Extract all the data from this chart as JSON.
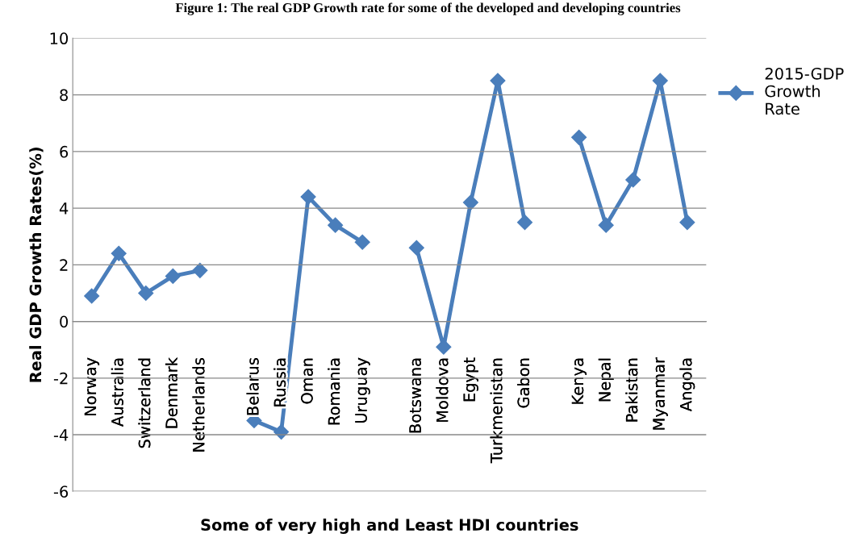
{
  "chart_data": {
    "type": "line",
    "title": "Figure 1: The real GDP Growth rate for some of the developed and developing countries",
    "xlabel": "Some of very high and Least HDI countries",
    "ylabel": "Real GDP Growth Rates(%)",
    "categories": [
      "Norway",
      "Australia",
      "Switzerland",
      "Denmark",
      "Netherlands",
      null,
      "Belarus",
      "Russia",
      "Oman",
      "Romania",
      "Uruguay",
      null,
      "Botswana",
      "Moldova",
      "Egypt",
      "Turkmenistan",
      "Gabon",
      null,
      "Kenya",
      "Nepal",
      "Pakistan",
      "Myanmar",
      "Angola"
    ],
    "series": [
      {
        "name": "2015-GDP Growth Rate",
        "color": "#4a7ebb",
        "values": [
          0.9,
          2.4,
          1.0,
          1.6,
          1.8,
          null,
          -3.5,
          -3.9,
          4.4,
          3.4,
          2.8,
          null,
          2.6,
          -0.9,
          4.2,
          8.5,
          3.5,
          null,
          6.5,
          3.4,
          5.0,
          8.5,
          3.5
        ]
      }
    ],
    "ylim": [
      -6,
      10
    ],
    "yticks": [
      -6,
      -4,
      -2,
      0,
      2,
      4,
      6,
      8,
      10
    ],
    "grid": "y",
    "legend": "right",
    "marker": "diamond",
    "line_style": "solid"
  }
}
